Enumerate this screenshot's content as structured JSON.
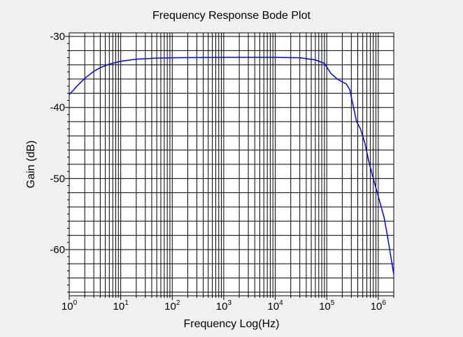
{
  "chart_data": {
    "type": "line",
    "title": "Frequency Response Bode Plot",
    "xlabel": "Frequency Log(Hz)",
    "ylabel": "Gain (dB)",
    "xscale": "log",
    "xlim": [
      1,
      2000000
    ],
    "ylim": [
      -66.5,
      -29.5
    ],
    "grid": true,
    "x_ticks": [
      {
        "base": "10",
        "exp": "0",
        "value": 1
      },
      {
        "base": "10",
        "exp": "1",
        "value": 10
      },
      {
        "base": "10",
        "exp": "2",
        "value": 100
      },
      {
        "base": "10",
        "exp": "3",
        "value": 1000
      },
      {
        "base": "10",
        "exp": "4",
        "value": 10000
      },
      {
        "base": "10",
        "exp": "5",
        "value": 100000
      },
      {
        "base": "10",
        "exp": "6",
        "value": 1000000
      }
    ],
    "y_ticks": [
      {
        "label": "-30",
        "value": -30
      },
      {
        "label": "-40",
        "value": -40
      },
      {
        "label": "-50",
        "value": -50
      },
      {
        "label": "-60",
        "value": -60
      }
    ],
    "series": [
      {
        "color": "#0000ff",
        "points": [
          [
            1,
            -38.2
          ],
          [
            1.5,
            -36.8
          ],
          [
            2,
            -35.9
          ],
          [
            3,
            -34.9
          ],
          [
            4,
            -34.4
          ],
          [
            6,
            -33.9
          ],
          [
            10,
            -33.5
          ],
          [
            20,
            -33.2
          ],
          [
            50,
            -33.05
          ],
          [
            100,
            -33.0
          ],
          [
            1000,
            -32.95
          ],
          [
            10000,
            -32.95
          ],
          [
            30000,
            -33.0
          ],
          [
            60000,
            -33.3
          ],
          [
            90000,
            -33.8
          ],
          [
            120000,
            -35.2
          ],
          [
            160000,
            -36.0
          ],
          [
            200000,
            -36.4
          ],
          [
            240000,
            -36.7
          ],
          [
            280000,
            -37.5
          ],
          [
            320000,
            -39.5
          ],
          [
            380000,
            -42.0
          ],
          [
            450000,
            -43.0
          ],
          [
            550000,
            -45.0
          ],
          [
            650000,
            -47.5
          ],
          [
            800000,
            -50.0
          ],
          [
            1000000,
            -52.5
          ],
          [
            1300000,
            -55.5
          ],
          [
            1500000,
            -58.0
          ],
          [
            1800000,
            -61.5
          ],
          [
            2000000,
            -63.5
          ]
        ]
      }
    ],
    "colors": {
      "background": "#f0f0f0",
      "plot_area": "#ffffff",
      "grid": "#000000",
      "ylabel": "#0000ff",
      "line": "#0000ff"
    }
  }
}
